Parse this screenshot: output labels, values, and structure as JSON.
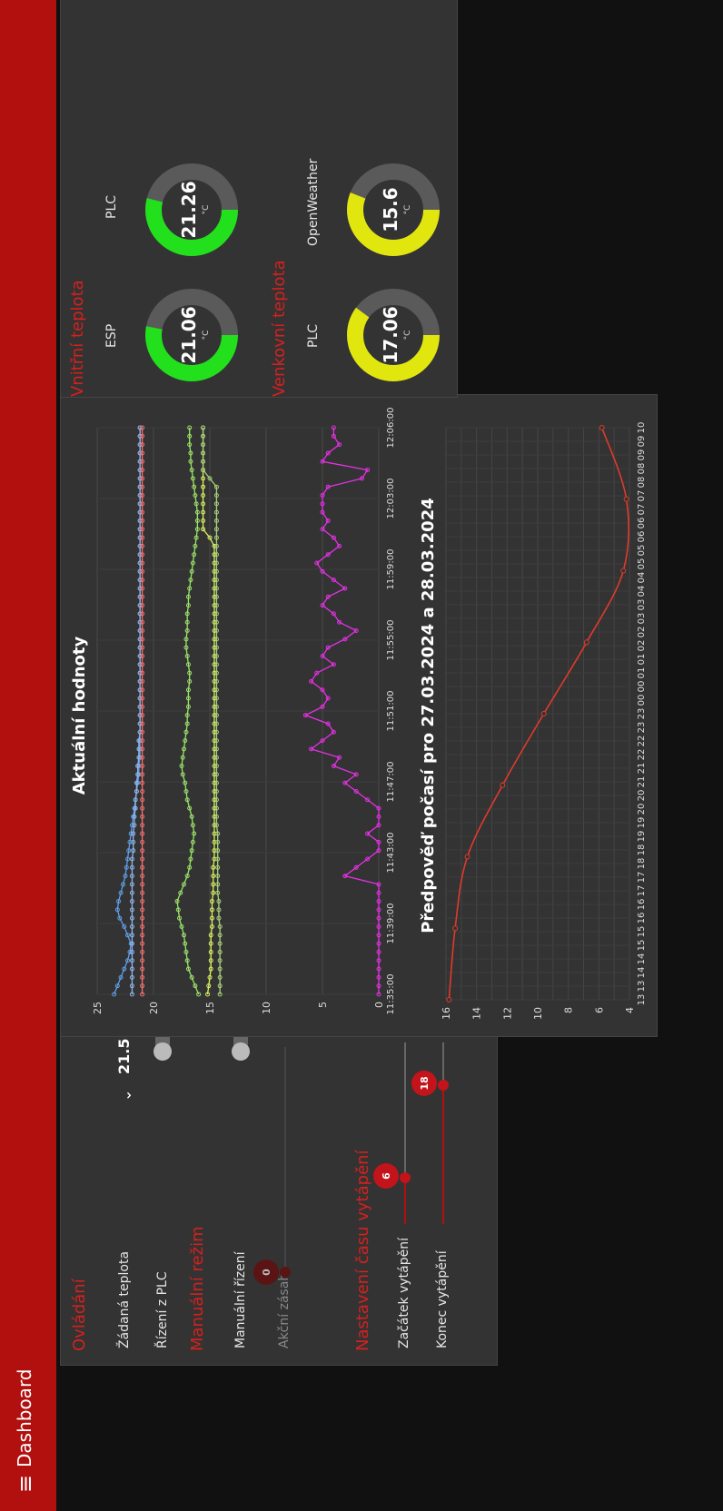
{
  "header": {
    "menu_icon": "hamburger-icon",
    "title": "Dashboard",
    "brand_color": "#b1100f"
  },
  "controls": {
    "title": "Ovládání",
    "setpoint_label": "Žádaná teplota",
    "setpoint_value": "21.5",
    "plc_label": "Řízení z PLC",
    "plc_on": false,
    "manual_title": "Manuální režim",
    "manual_label": "Manuální řízení",
    "manual_on": false,
    "action_label": "Akční zásah",
    "action_value": "0",
    "action_level": 0,
    "schedule_title": "Nastavení času vytápění",
    "start_label": "Začátek vytápění",
    "start_value": "6",
    "start_level": 0.25,
    "end_label": "Konec vytápění",
    "end_value": "18",
    "end_level": 0.75
  },
  "indoor": {
    "title": "Vnitřní teplota",
    "gauges": [
      {
        "label": "ESP",
        "value": "21.06",
        "unit": "°C",
        "level": 0.53,
        "color": "#22e01c"
      },
      {
        "label": "PLC",
        "value": "21.26",
        "unit": "°C",
        "level": 0.54,
        "color": "#22e01c"
      }
    ]
  },
  "outdoor": {
    "title": "Venkovní teplota",
    "gauges": [
      {
        "label": "PLC",
        "value": "17.06",
        "unit": "°C",
        "level": 0.6,
        "color": "#e2e60f"
      },
      {
        "label": "OpenWeather",
        "value": "15.6",
        "unit": "°C",
        "level": 0.56,
        "color": "#e2e60f"
      }
    ]
  },
  "chart_data": [
    {
      "type": "line",
      "title": "Aktuální hodnoty",
      "ylim": [
        0,
        25
      ],
      "yticks": [
        "0",
        "5",
        "10",
        "15",
        "20",
        "25"
      ],
      "xticks": [
        "11:35:00",
        "11:39:00",
        "11:43:00",
        "11:47:00",
        "11:51:00",
        "11:55:00",
        "11:59:00",
        "12:03:00",
        "12:06:00"
      ],
      "grid": true,
      "series": [
        {
          "color": "#5f9ee6",
          "values": [
            23.5,
            23.2,
            22.9,
            22.6,
            22.3,
            22.1,
            22.0,
            22.3,
            22.6,
            23.0,
            23.2,
            23.1,
            22.9,
            22.7,
            22.5,
            22.4,
            22.3,
            22.2,
            22.1,
            22.0,
            21.9,
            21.8,
            21.7,
            21.6,
            21.5,
            21.4,
            21.3,
            21.3,
            21.2,
            21.2,
            21.2,
            21.2,
            21.2,
            21.2,
            21.2,
            21.2,
            21.2,
            21.2,
            21.2,
            21.2,
            21.2,
            21.2,
            21.2,
            21.2,
            21.2,
            21.2,
            21.2,
            21.2,
            21.2,
            21.2,
            21.2,
            21.2,
            21.2,
            21.2,
            21.2,
            21.2,
            21.2,
            21.2,
            21.2,
            21.2,
            21.2,
            21.2,
            21.2,
            21.2,
            21.2,
            21.2,
            21.2,
            21.2
          ]
        },
        {
          "color": "#8fb3e8",
          "values": [
            21.9,
            21.9,
            21.9,
            21.9,
            21.9,
            21.9,
            21.9,
            21.9,
            21.9,
            21.9,
            21.9,
            21.9,
            21.9,
            21.9,
            21.9,
            21.9,
            21.9,
            21.8,
            21.8,
            21.8,
            21.7,
            21.7,
            21.6,
            21.6,
            21.5,
            21.5,
            21.4,
            21.4,
            21.3,
            21.3,
            21.3,
            21.2,
            21.2,
            21.2,
            21.2,
            21.2,
            21.2,
            21.2,
            21.2,
            21.2,
            21.2,
            21.2,
            21.2,
            21.2,
            21.2,
            21.2,
            21.2,
            21.2,
            21.2,
            21.2,
            21.2,
            21.2,
            21.2,
            21.2,
            21.2,
            21.2,
            21.2,
            21.2,
            21.2,
            21.2,
            21.2,
            21.2,
            21.2,
            21.2,
            21.2,
            21.2,
            21.2,
            21.2
          ]
        },
        {
          "color": "#f07070",
          "values": [
            21.0,
            21.0,
            21.0,
            21.0,
            21.0,
            21.0,
            21.0,
            21.0,
            21.0,
            21.0,
            21.0,
            21.0,
            21.0,
            21.0,
            21.0,
            21.0,
            21.0,
            21.0,
            21.0,
            21.0,
            21.0,
            21.0,
            21.0,
            21.0,
            21.0,
            21.0,
            21.0,
            21.0,
            21.0,
            21.0,
            21.0,
            21.0,
            21.0,
            21.0,
            21.0,
            21.0,
            21.0,
            21.0,
            21.0,
            21.0,
            21.0,
            21.0,
            21.0,
            21.0,
            21.0,
            21.0,
            21.0,
            21.0,
            21.0,
            21.0,
            21.0,
            21.0,
            21.0,
            21.0,
            21.0,
            21.0,
            21.0,
            21.0,
            21.0,
            21.0,
            21.0,
            21.0,
            21.0,
            21.0,
            21.0,
            21.0,
            21.0,
            21.0
          ]
        },
        {
          "color": "#9be36a",
          "values": [
            16.0,
            16.3,
            16.6,
            16.9,
            17.0,
            17.1,
            17.2,
            17.3,
            17.5,
            17.7,
            17.8,
            17.9,
            17.6,
            17.3,
            17.0,
            16.8,
            16.7,
            16.6,
            16.5,
            16.4,
            16.5,
            16.6,
            16.8,
            17.0,
            17.1,
            17.2,
            17.4,
            17.5,
            17.4,
            17.3,
            17.2,
            17.1,
            17.0,
            17.0,
            16.9,
            16.9,
            16.9,
            16.8,
            16.8,
            16.9,
            17.0,
            17.1,
            17.1,
            17.0,
            17.0,
            17.0,
            16.9,
            16.9,
            16.8,
            16.7,
            16.6,
            16.5,
            16.4,
            16.3,
            16.2,
            16.1,
            16.1,
            16.1,
            16.2,
            16.3,
            16.4,
            16.5,
            16.6,
            16.7,
            16.7,
            16.8,
            16.8,
            16.8
          ]
        },
        {
          "color": "#d9f05e",
          "values": [
            15.2,
            15.1,
            15.0,
            14.9,
            14.9,
            14.9,
            14.9,
            14.9,
            14.8,
            14.8,
            14.8,
            14.8,
            14.7,
            14.7,
            14.7,
            14.7,
            14.6,
            14.6,
            14.6,
            14.6,
            14.6,
            14.6,
            14.6,
            14.6,
            14.6,
            14.6,
            14.6,
            14.6,
            14.6,
            14.6,
            14.6,
            14.6,
            14.6,
            14.6,
            14.6,
            14.6,
            14.6,
            14.6,
            14.6,
            14.6,
            14.6,
            14.6,
            14.6,
            14.6,
            14.6,
            14.6,
            14.6,
            14.6,
            14.6,
            14.6,
            14.6,
            14.6,
            14.6,
            14.6,
            15.0,
            15.6,
            15.6,
            15.6,
            15.6,
            15.6,
            15.6,
            15.6,
            15.6,
            15.6,
            15.6,
            15.6,
            15.6,
            15.6
          ]
        },
        {
          "color": "#a8cf7a",
          "values": [
            14.1,
            14.1,
            14.1,
            14.1,
            14.1,
            14.1,
            14.1,
            14.1,
            14.1,
            14.2,
            14.2,
            14.2,
            14.3,
            14.3,
            14.3,
            14.3,
            14.3,
            14.3,
            14.3,
            14.3,
            14.4,
            14.4,
            14.4,
            14.4,
            14.4,
            14.4,
            14.4,
            14.4,
            14.4,
            14.4,
            14.4,
            14.4,
            14.4,
            14.4,
            14.4,
            14.4,
            14.4,
            14.4,
            14.4,
            14.4,
            14.4,
            14.4,
            14.4,
            14.4,
            14.4,
            14.4,
            14.4,
            14.4,
            14.4,
            14.4,
            14.4,
            14.4,
            14.4,
            14.4,
            14.4,
            14.4,
            14.4,
            14.4,
            14.4,
            14.4,
            14.4,
            15.0,
            15.6,
            15.6,
            15.6,
            15.6,
            15.6,
            15.6
          ]
        },
        {
          "color": "#e531e5",
          "values": [
            0,
            0,
            0,
            0,
            0,
            0,
            0,
            0,
            0,
            0,
            0,
            0,
            0,
            0,
            3.0,
            2.0,
            1.0,
            0,
            0,
            1.0,
            0,
            0,
            0,
            1.0,
            2.0,
            3.0,
            2.0,
            4.0,
            3.5,
            6.0,
            5.0,
            4.0,
            4.5,
            6.5,
            5.0,
            4.5,
            5.0,
            6.0,
            5.5,
            4.0,
            5.0,
            4.5,
            3.0,
            2.0,
            3.5,
            4.0,
            5.0,
            4.5,
            3.0,
            4.0,
            5.0,
            5.5,
            4.5,
            3.5,
            4.0,
            5.0,
            4.5,
            5.0,
            5.0,
            5.0,
            4.5,
            1.5,
            1.0,
            5.0,
            4.5,
            3.5,
            4.0,
            4.0
          ]
        }
      ]
    },
    {
      "type": "line",
      "title": "Předpověď počasí pro 27.03.2024 a 28.03.2024",
      "ylim": [
        4,
        16
      ],
      "yticks": [
        "4",
        "6",
        "8",
        "10",
        "12",
        "14",
        "16"
      ],
      "x": [
        "13",
        "13",
        "14",
        "14",
        "15",
        "15",
        "16",
        "16",
        "17",
        "17",
        "18",
        "18",
        "19",
        "19",
        "20",
        "20",
        "21",
        "21",
        "22",
        "22",
        "23",
        "23",
        "00",
        "00",
        "01",
        "01",
        "02",
        "02",
        "03",
        "03",
        "04",
        "04",
        "05",
        "05",
        "06",
        "06",
        "07",
        "07",
        "08",
        "08",
        "09",
        "09",
        "10"
      ],
      "points_x": [
        0,
        3,
        6,
        9,
        12,
        15,
        18,
        21,
        24
      ],
      "points_y": [
        15.8,
        15.4,
        14.6,
        12.3,
        9.6,
        6.8,
        4.4,
        4.2,
        5.8
      ],
      "series_color": "#e03a2c",
      "grid": true
    }
  ]
}
